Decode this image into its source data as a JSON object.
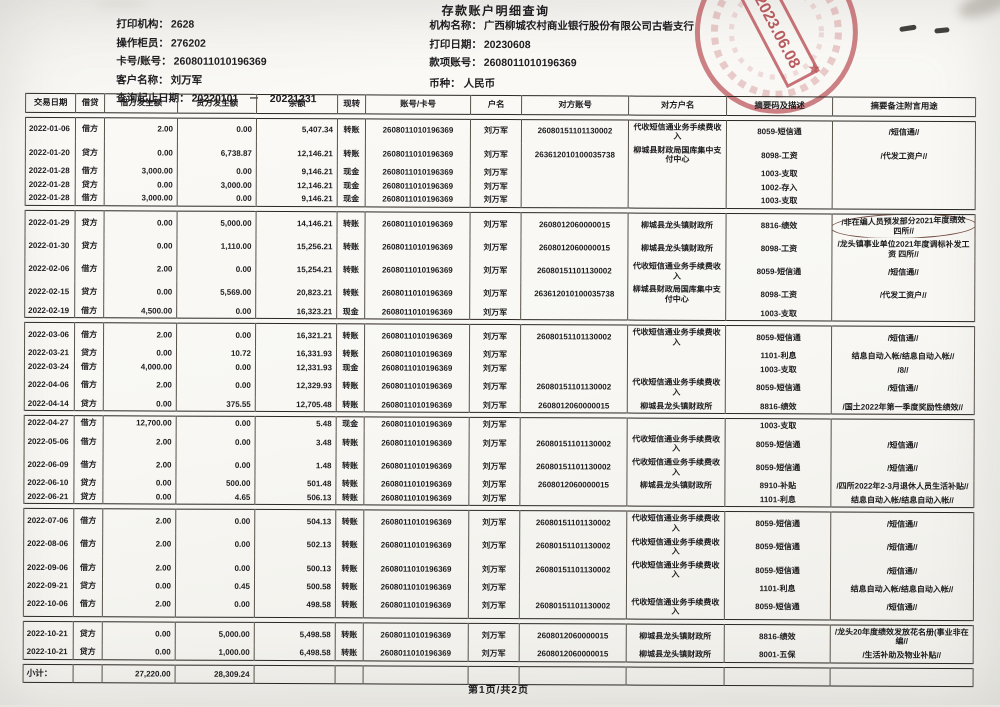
{
  "header": {
    "title": "存款账户明细查询",
    "left": [
      {
        "label": "打印机构：",
        "value": "2628"
      },
      {
        "label": "操作柜员：",
        "value": "276202"
      },
      {
        "label": "卡号/账号：",
        "value": "2608011010196369"
      },
      {
        "label": "客户名称：",
        "value": "刘万军"
      },
      {
        "label": "查询起止日期：",
        "value": "20220101　－　20221231"
      }
    ],
    "right": [
      {
        "label": "机构名称：",
        "value": "广西柳城农村商业银行股份有限公司古砦支行"
      },
      {
        "label": "打印日期：",
        "value": "20230608"
      },
      {
        "label": "款项账号：",
        "value": "2608011010196369"
      }
    ],
    "currency_label": "币种：",
    "currency_value": "人民币",
    "stamp": {
      "date": "2023.06.08",
      "star": "★"
    }
  },
  "colors": {
    "stamp_red": "#b23b42",
    "ink": "#1d1d1f",
    "paper": "#f8f7f3"
  },
  "table": {
    "columns": [
      "交易日期",
      "借贷",
      "借方发生额",
      "贷方发生额",
      "余额",
      "现转",
      "账号/卡号",
      "户名",
      "对方账号",
      "对方户名",
      "摘要码及描述",
      "摘要备注附言用途"
    ],
    "groups": [
      [
        {
          "d": "2022-01-06",
          "dc": "借方",
          "db": "2.00",
          "cr": "0.00",
          "bal": "5,407.34",
          "m": "转账",
          "acct": "2608011010196369",
          "nm": "刘万军",
          "ca": "26080151101130002",
          "cn": "代收短信通业务手续费收入",
          "sum": "8059-短信通",
          "rm": "/短信通//"
        },
        {
          "d": "2022-01-20",
          "dc": "贷方",
          "db": "0.00",
          "cr": "6,738.87",
          "bal": "12,146.21",
          "m": "转账",
          "acct": "2608011010196369",
          "nm": "刘万军",
          "ca": "263612010100035738",
          "cn": "柳城县财政局国库集中支付中心",
          "sum": "8098-工资",
          "rm": "/代发工资户//"
        },
        {
          "d": "2022-01-28",
          "dc": "借方",
          "db": "3,000.00",
          "cr": "0.00",
          "bal": "9,146.21",
          "m": "现金",
          "acct": "2608011010196369",
          "nm": "刘万军",
          "ca": "",
          "cn": "",
          "sum": "1003-支取",
          "rm": ""
        },
        {
          "d": "2022-01-28",
          "dc": "贷方",
          "db": "0.00",
          "cr": "3,000.00",
          "bal": "12,146.21",
          "m": "现金",
          "acct": "2608011010196369",
          "nm": "刘万军",
          "ca": "",
          "cn": "",
          "sum": "1002-存入",
          "rm": ""
        },
        {
          "d": "2022-01-28",
          "dc": "借方",
          "db": "3,000.00",
          "cr": "0.00",
          "bal": "9,146.21",
          "m": "现金",
          "acct": "2608011010196369",
          "nm": "刘万军",
          "ca": "",
          "cn": "",
          "sum": "1003-支取",
          "rm": ""
        }
      ],
      [
        {
          "d": "2022-01-29",
          "dc": "贷方",
          "db": "0.00",
          "cr": "5,000.00",
          "bal": "14,146.21",
          "m": "转账",
          "acct": "2608011010196369",
          "nm": "刘万军",
          "ca": "2608012060000015",
          "cn": "柳城县龙头镇财政所",
          "sum": "8816-绩效",
          "rm": "/非在编人员预发部分2021年度绩效 四所//",
          "circled": true
        },
        {
          "d": "2022-01-30",
          "dc": "贷方",
          "db": "0.00",
          "cr": "1,110.00",
          "bal": "15,256.21",
          "m": "转账",
          "acct": "2608011010196369",
          "nm": "刘万军",
          "ca": "2608012060000015",
          "cn": "柳城县龙头镇财政所",
          "sum": "8098-工资",
          "rm": "/龙头镇事业单位2021年度调标补发工资 四所//"
        },
        {
          "d": "2022-02-06",
          "dc": "借方",
          "db": "2.00",
          "cr": "0.00",
          "bal": "15,254.21",
          "m": "转账",
          "acct": "2608011010196369",
          "nm": "刘万军",
          "ca": "26080151101130002",
          "cn": "代收短信通业务手续费收入",
          "sum": "8059-短信通",
          "rm": "/短信通//"
        },
        {
          "d": "2022-02-15",
          "dc": "贷方",
          "db": "0.00",
          "cr": "5,569.00",
          "bal": "20,823.21",
          "m": "转账",
          "acct": "2608011010196369",
          "nm": "刘万军",
          "ca": "263612010100035738",
          "cn": "柳城县财政局国库集中支付中心",
          "sum": "8098-工资",
          "rm": "/代发工资户//"
        },
        {
          "d": "2022-02-19",
          "dc": "借方",
          "db": "4,500.00",
          "cr": "0.00",
          "bal": "16,323.21",
          "m": "现金",
          "acct": "2608011010196369",
          "nm": "刘万军",
          "ca": "",
          "cn": "",
          "sum": "1003-支取",
          "rm": ""
        }
      ],
      [
        {
          "d": "2022-03-06",
          "dc": "借方",
          "db": "2.00",
          "cr": "0.00",
          "bal": "16,321.21",
          "m": "转账",
          "acct": "2608011010196369",
          "nm": "刘万军",
          "ca": "26080151101130002",
          "cn": "代收短信通业务手续费收入",
          "sum": "8059-短信通",
          "rm": "/短信通//"
        },
        {
          "d": "2022-03-21",
          "dc": "贷方",
          "db": "0.00",
          "cr": "10.72",
          "bal": "16,331.93",
          "m": "转账",
          "acct": "2608011010196369",
          "nm": "刘万军",
          "ca": "",
          "cn": "",
          "sum": "1101-利息",
          "rm": "结息自动入帐/结息自动入帐//"
        },
        {
          "d": "2022-03-24",
          "dc": "借方",
          "db": "4,000.00",
          "cr": "0.00",
          "bal": "12,331.93",
          "m": "现金",
          "acct": "2608011010196369",
          "nm": "刘万军",
          "ca": "",
          "cn": "",
          "sum": "1003-支取",
          "rm": "/8//"
        },
        {
          "d": "2022-04-06",
          "dc": "借方",
          "db": "2.00",
          "cr": "0.00",
          "bal": "12,329.93",
          "m": "转账",
          "acct": "2608011010196369",
          "nm": "刘万军",
          "ca": "26080151101130002",
          "cn": "代收短信通业务手续费收入",
          "sum": "8059-短信通",
          "rm": "/短信通//"
        },
        {
          "d": "2022-04-14",
          "dc": "贷方",
          "db": "0.00",
          "cr": "375.55",
          "bal": "12,705.48",
          "m": "转账",
          "acct": "2608011010196369",
          "nm": "刘万军",
          "ca": "2608012060000015",
          "cn": "柳城县龙头镇财政所",
          "sum": "8816-绩效",
          "rm": "/国土2022年第一季度奖励性绩效//"
        }
      ],
      [
        {
          "d": "2022-04-27",
          "dc": "借方",
          "db": "12,700.00",
          "cr": "0.00",
          "bal": "5.48",
          "m": "现金",
          "acct": "2608011010196369",
          "nm": "刘万军",
          "ca": "",
          "cn": "",
          "sum": "1003-支取",
          "rm": ""
        },
        {
          "d": "2022-05-06",
          "dc": "借方",
          "db": "2.00",
          "cr": "0.00",
          "bal": "3.48",
          "m": "转账",
          "acct": "2608011010196369",
          "nm": "刘万军",
          "ca": "26080151101130002",
          "cn": "代收短信通业务手续费收入",
          "sum": "8059-短信通",
          "rm": "/短信通//"
        },
        {
          "d": "2022-06-09",
          "dc": "借方",
          "db": "2.00",
          "cr": "0.00",
          "bal": "1.48",
          "m": "转账",
          "acct": "2608011010196369",
          "nm": "刘万军",
          "ca": "26080151101130002",
          "cn": "代收短信通业务手续费收入",
          "sum": "8059-短信通",
          "rm": "/短信通//"
        },
        {
          "d": "2022-06-10",
          "dc": "贷方",
          "db": "0.00",
          "cr": "500.00",
          "bal": "501.48",
          "m": "转账",
          "acct": "2608011010196369",
          "nm": "刘万军",
          "ca": "2608012060000015",
          "cn": "柳城县龙头镇财政所",
          "sum": "8910-补贴",
          "rm": "/四所2022年2-3月退休人员生活补贴//"
        },
        {
          "d": "2022-06-21",
          "dc": "贷方",
          "db": "0.00",
          "cr": "4.65",
          "bal": "506.13",
          "m": "转账",
          "acct": "2608011010196369",
          "nm": "刘万军",
          "ca": "",
          "cn": "",
          "sum": "1101-利息",
          "rm": "结息自动入帐/结息自动入帐//"
        }
      ],
      [
        {
          "d": "2022-07-06",
          "dc": "借方",
          "db": "2.00",
          "cr": "0.00",
          "bal": "504.13",
          "m": "转账",
          "acct": "2608011010196369",
          "nm": "刘万军",
          "ca": "26080151101130002",
          "cn": "代收短信通业务手续费收入",
          "sum": "8059-短信通",
          "rm": "/短信通//"
        },
        {
          "d": "2022-08-06",
          "dc": "借方",
          "db": "2.00",
          "cr": "0.00",
          "bal": "502.13",
          "m": "转账",
          "acct": "2608011010196369",
          "nm": "刘万军",
          "ca": "26080151101130002",
          "cn": "代收短信通业务手续费收入",
          "sum": "8059-短信通",
          "rm": "/短信通//"
        },
        {
          "d": "2022-09-06",
          "dc": "借方",
          "db": "2.00",
          "cr": "0.00",
          "bal": "500.13",
          "m": "转账",
          "acct": "2608011010196369",
          "nm": "刘万军",
          "ca": "26080151101130002",
          "cn": "代收短信通业务手续费收入",
          "sum": "8059-短信通",
          "rm": "/短信通//"
        },
        {
          "d": "2022-09-21",
          "dc": "贷方",
          "db": "0.00",
          "cr": "0.45",
          "bal": "500.58",
          "m": "转账",
          "acct": "2608011010196369",
          "nm": "刘万军",
          "ca": "",
          "cn": "",
          "sum": "1101-利息",
          "rm": "结息自动入帐/结息自动入帐//"
        },
        {
          "d": "2022-10-06",
          "dc": "借方",
          "db": "2.00",
          "cr": "0.00",
          "bal": "498.58",
          "m": "转账",
          "acct": "2608011010196369",
          "nm": "刘万军",
          "ca": "26080151101130002",
          "cn": "代收短信通业务手续费收入",
          "sum": "8059-短信通",
          "rm": "/短信通//"
        }
      ],
      [
        {
          "d": "2022-10-21",
          "dc": "贷方",
          "db": "0.00",
          "cr": "5,000.00",
          "bal": "5,498.58",
          "m": "转账",
          "acct": "2608011010196369",
          "nm": "刘万军",
          "ca": "2608012060000015",
          "cn": "柳城县龙头镇财政所",
          "sum": "8816-绩效",
          "rm": "/龙头20年度绩效发放花名册(事业非在编//"
        },
        {
          "d": "2022-10-21",
          "dc": "贷方",
          "db": "0.00",
          "cr": "1,000.00",
          "bal": "6,498.58",
          "m": "转账",
          "acct": "2608011010196369",
          "nm": "刘万军",
          "ca": "2608012060000015",
          "cn": "柳城县龙头镇财政所",
          "sum": "8001-五保",
          "rm": "/生活补助及物业补贴//"
        }
      ]
    ],
    "subtotal": {
      "label": "小计：",
      "debit_total": "27,220.00",
      "credit_total": "28,309.24"
    }
  },
  "footer": {
    "page": "第1页/共2页"
  }
}
